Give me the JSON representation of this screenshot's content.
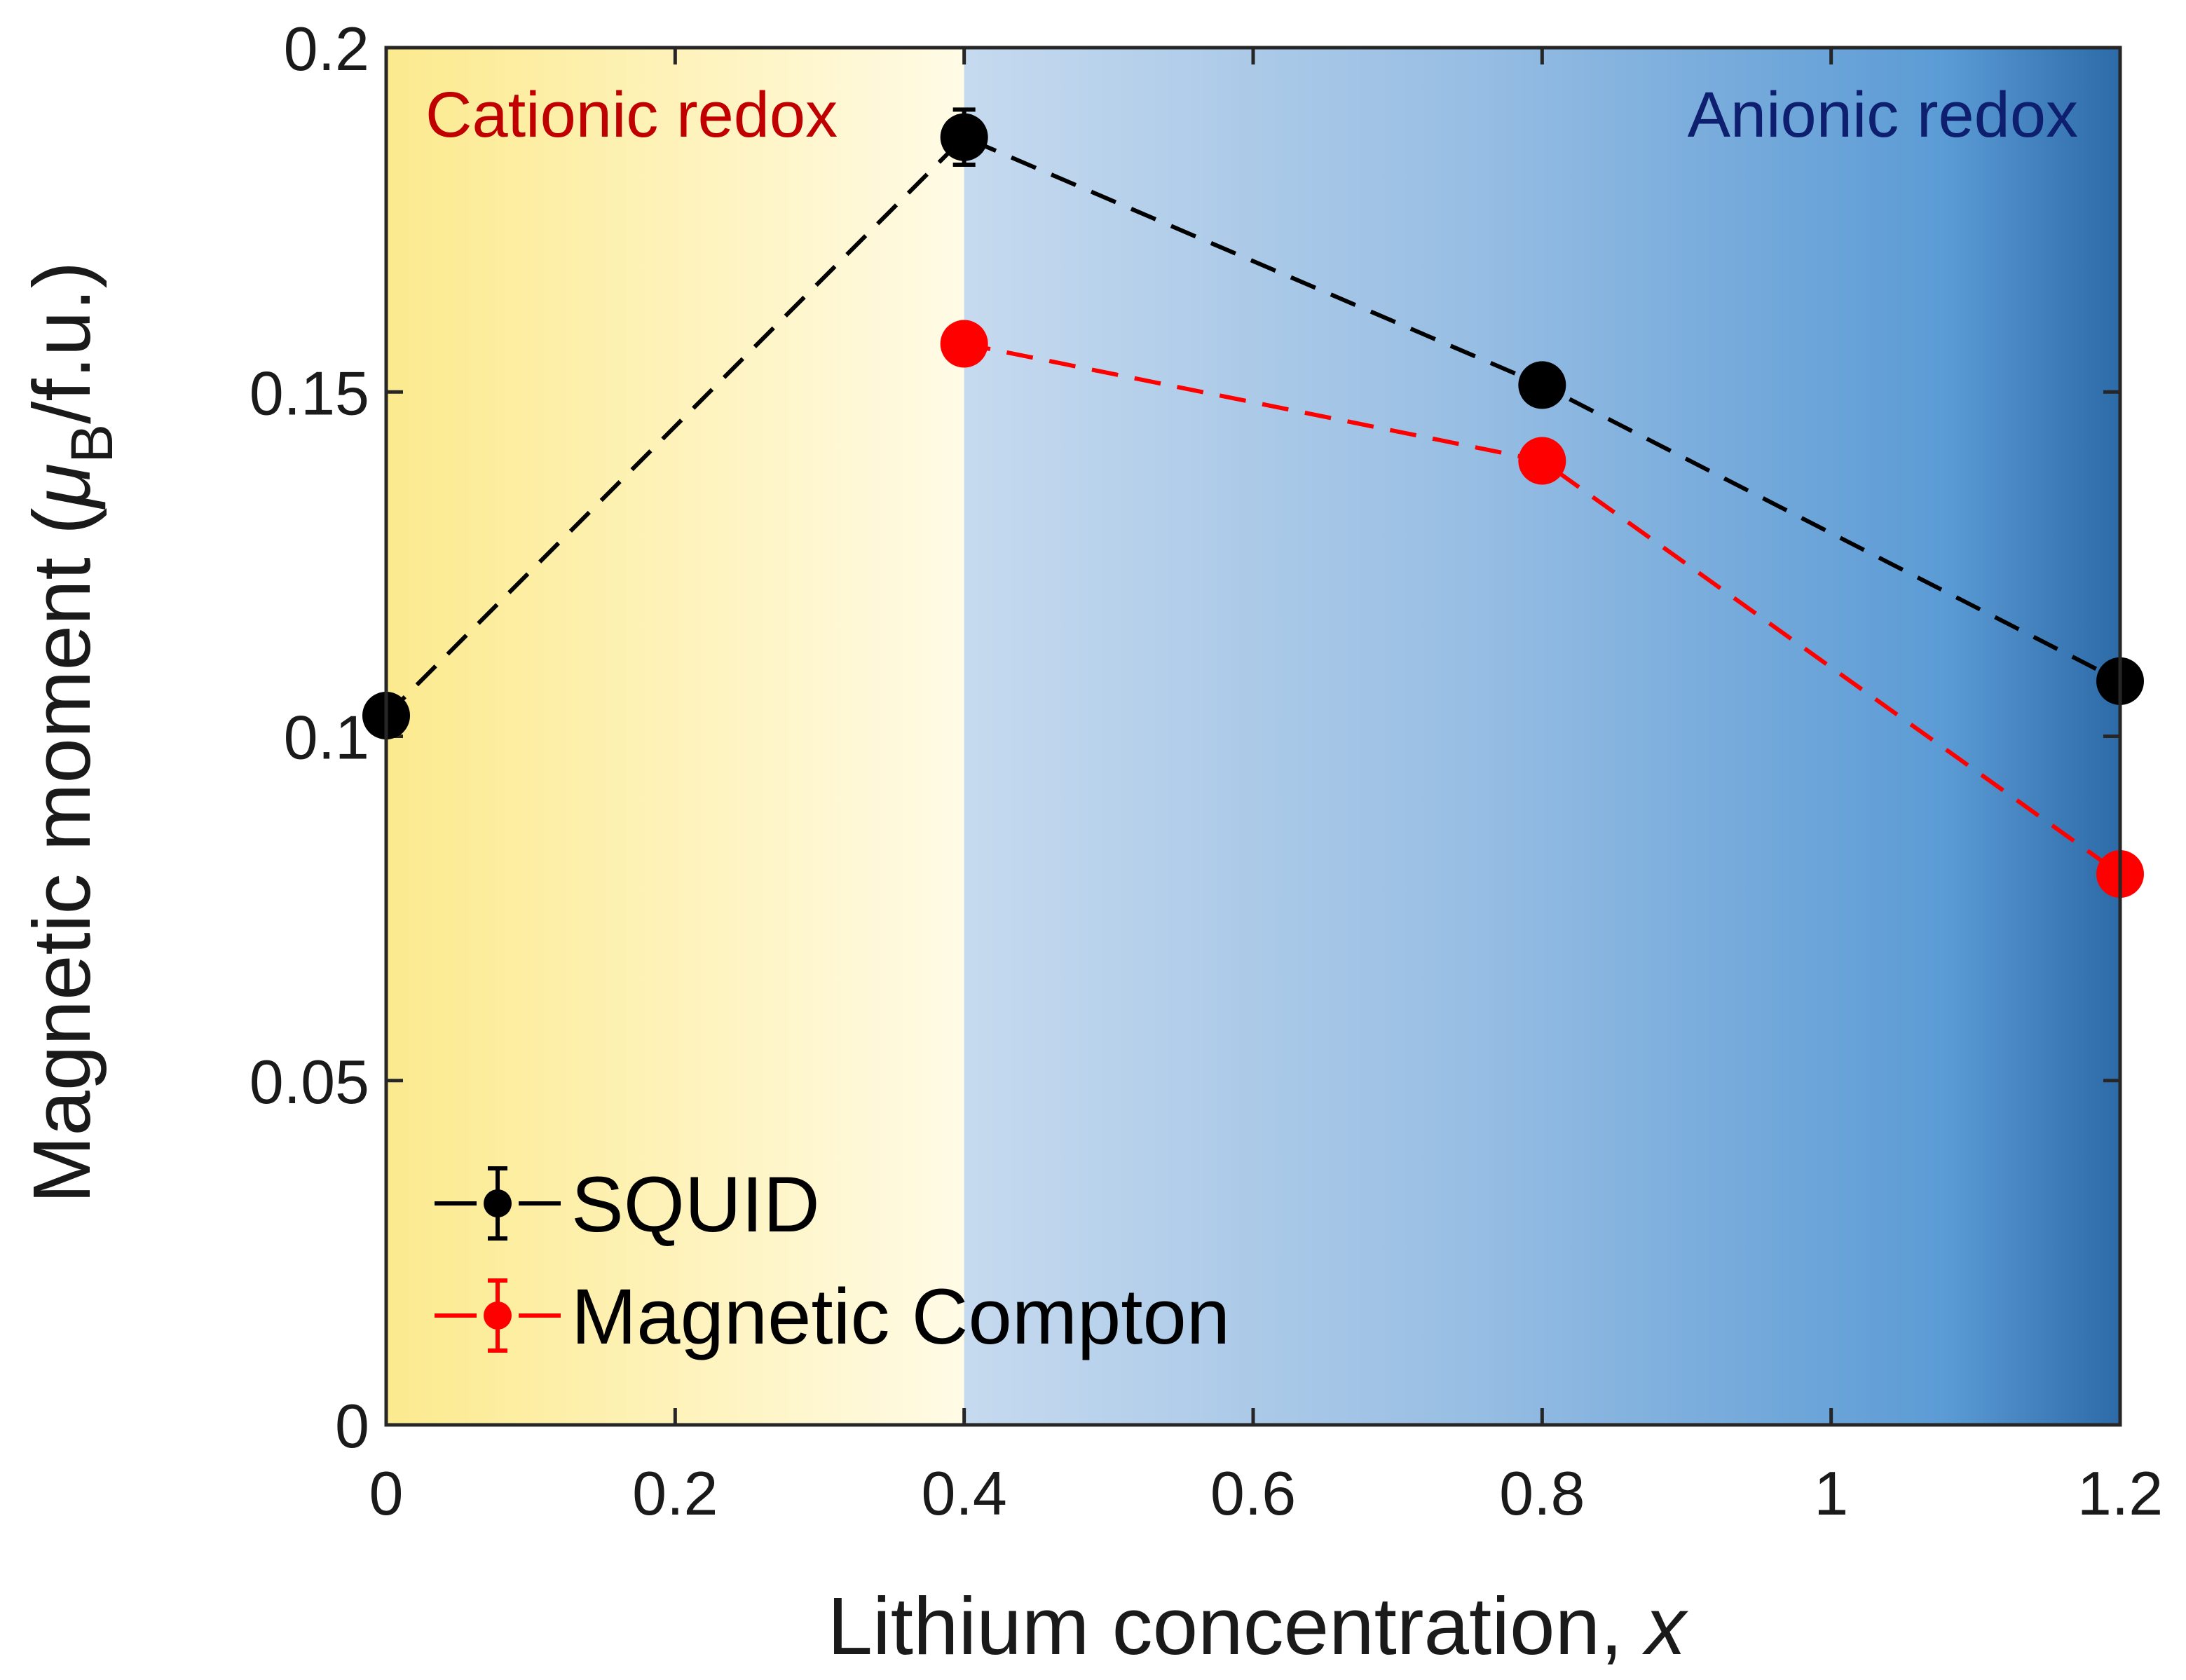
{
  "chart_data": {
    "type": "line",
    "xlabel": "Lithium concentration, ",
    "xlabel_var": "x",
    "ylabel_main": "Magnetic moment (",
    "ylabel_mu": "μ",
    "ylabel_sub": "B",
    "ylabel_tail": "/f.u.)",
    "xlim": [
      0,
      1.2
    ],
    "ylim": [
      0,
      0.2
    ],
    "xticks": [
      0,
      0.2,
      0.4,
      0.6,
      0.8,
      1.0,
      1.2
    ],
    "xtick_labels": [
      "0",
      "0.2",
      "0.4",
      "0.6",
      "0.8",
      "1",
      "1.2"
    ],
    "yticks": [
      0,
      0.05,
      0.1,
      0.15,
      0.2
    ],
    "ytick_labels": [
      "0",
      "0.05",
      "0.1",
      "0.15",
      "0.2"
    ],
    "grid": false,
    "legend_position": "bottom-left",
    "regions": [
      {
        "label": "Cationic redox",
        "x_range": [
          0,
          0.4
        ],
        "color": "#c00000"
      },
      {
        "label": "Anionic redox",
        "x_range": [
          0.4,
          1.2
        ],
        "color": "#0d1f6e"
      }
    ],
    "series": [
      {
        "name": "SQUID",
        "color": "#000000",
        "x": [
          0,
          0.4,
          0.8,
          1.2
        ],
        "y": [
          0.103,
          0.187,
          0.151,
          0.108
        ],
        "yerr": [
          0,
          0.004,
          0,
          0
        ]
      },
      {
        "name": "Magnetic Compton",
        "color": "#ff0000",
        "x": [
          0.4,
          0.8,
          1.2
        ],
        "y": [
          0.157,
          0.14,
          0.08
        ],
        "yerr": [
          0,
          0,
          0
        ]
      }
    ]
  }
}
